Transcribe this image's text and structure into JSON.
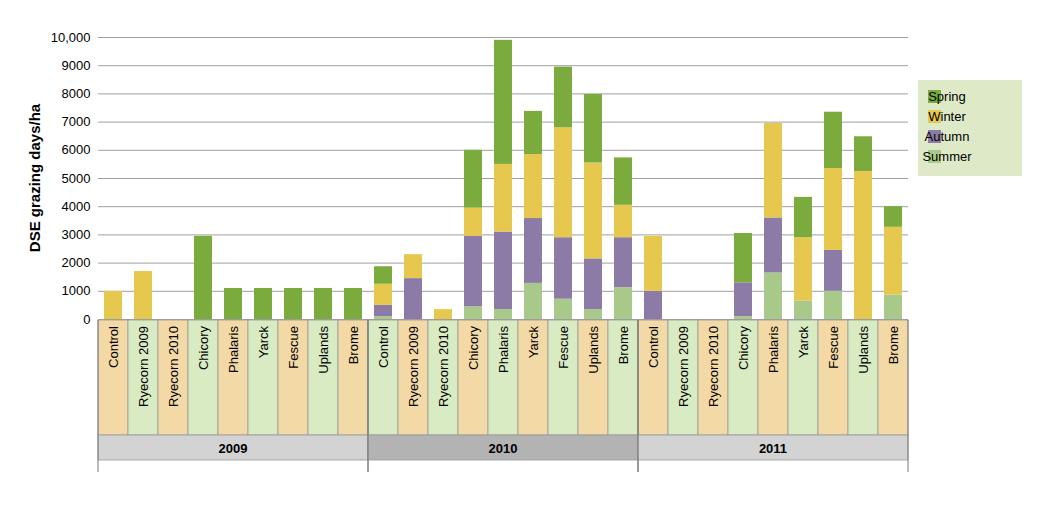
{
  "chart_data": {
    "type": "bar",
    "stacked": true,
    "grid": true,
    "legend": "right",
    "y_label": "DSE grazing days/ha",
    "ylim": [
      0,
      10000
    ],
    "yticks": [
      0,
      1000,
      2000,
      3000,
      4000,
      5000,
      6000,
      7000,
      8000,
      9000,
      {
        "value": 10000,
        "label": "10,000"
      }
    ],
    "categories": [
      "Control",
      "Ryecorn 2009",
      "Ryecorn 2010",
      "Chicory",
      "Phalaris",
      "Yarck",
      "Fescue",
      "Uplands",
      "Brome",
      "Control",
      "Ryecorn 2009",
      "Ryecorn 2010",
      "Chicory",
      "Phalaris",
      "Yarck",
      "Fescue",
      "Uplands",
      "Brome",
      "Control",
      "Ryecorn 2009",
      "Ryecorn 2010",
      "Chicory",
      "Phalaris",
      "Yarck",
      "Fescue",
      "Uplands",
      "Brome"
    ],
    "category_groups": [
      "2009",
      "2009",
      "2009",
      "2009",
      "2009",
      "2009",
      "2009",
      "2009",
      "2009",
      "2010",
      "2010",
      "2010",
      "2010",
      "2010",
      "2010",
      "2010",
      "2010",
      "2010",
      "2011",
      "2011",
      "2011",
      "2011",
      "2011",
      "2011",
      "2011",
      "2011",
      "2011"
    ],
    "series": [
      {
        "name": "Summer",
        "color": "#a9c98a",
        "values": [
          0,
          0,
          0,
          0,
          0,
          0,
          0,
          0,
          0,
          100,
          0,
          0,
          450,
          350,
          1280,
          720,
          350,
          1130,
          0,
          0,
          0,
          100,
          1650,
          650,
          1000,
          0,
          870
        ]
      },
      {
        "name": "Autumn",
        "color": "#8b7ba6",
        "values": [
          0,
          0,
          0,
          0,
          0,
          0,
          0,
          0,
          0,
          400,
          1450,
          0,
          2500,
          2750,
          2300,
          2180,
          1800,
          1770,
          1000,
          0,
          0,
          1200,
          1950,
          0,
          1450,
          0,
          0
        ]
      },
      {
        "name": "Winter",
        "color": "#e6c84f",
        "values": [
          1000,
          1700,
          0,
          0,
          0,
          0,
          0,
          0,
          0,
          750,
          850,
          350,
          1000,
          2400,
          2270,
          3900,
          3400,
          1150,
          1950,
          0,
          0,
          0,
          3350,
          2250,
          2900,
          5250,
          2400
        ]
      },
      {
        "name": "Spring",
        "color": "#7aab3c",
        "values": [
          0,
          0,
          0,
          2950,
          1100,
          1100,
          1100,
          1100,
          1100,
          620,
          0,
          0,
          2050,
          4400,
          1530,
          2150,
          2430,
          1680,
          0,
          0,
          0,
          1750,
          0,
          1430,
          2000,
          1230,
          730
        ]
      }
    ]
  }
}
